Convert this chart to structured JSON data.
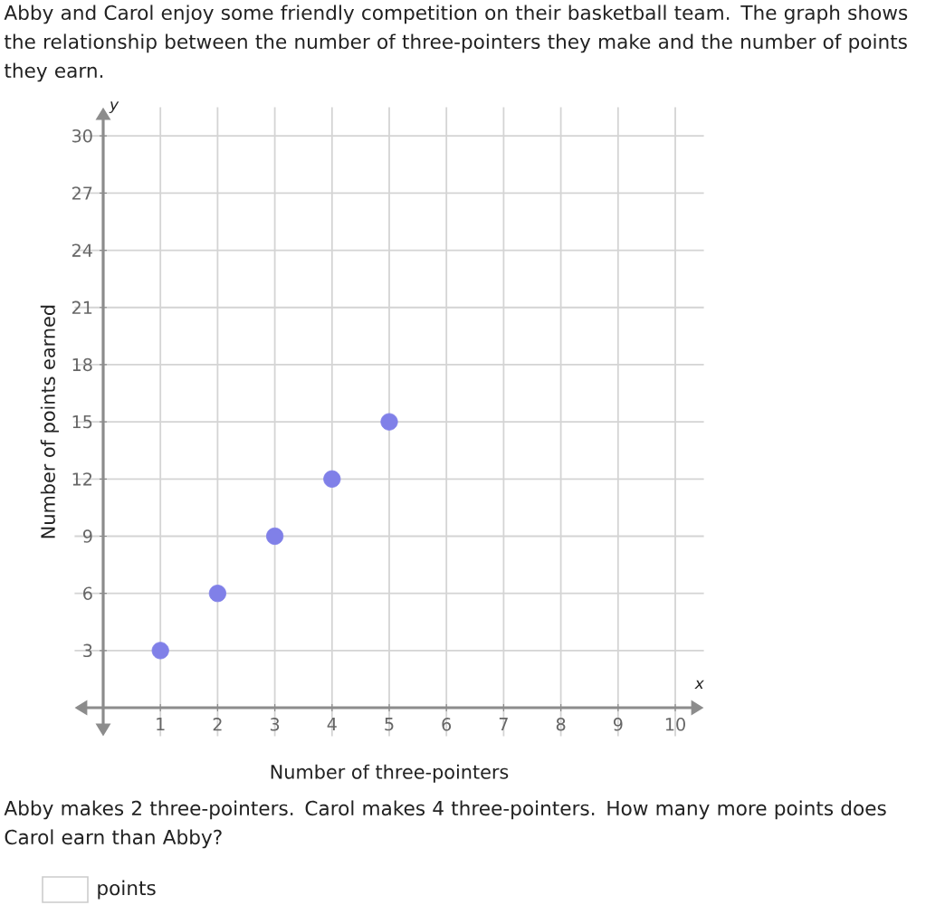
{
  "chart_data": {
    "type": "scatter",
    "title": "Abby and Carol enjoy some friendly competition on their basketball team. The graph shows the relationship between the number of three-pointers they make and the number of points they earn.",
    "xlabel": "Number of three-pointers",
    "ylabel": "Number of points earned",
    "x": [
      1,
      2,
      3,
      4,
      5
    ],
    "values": [
      3,
      6,
      9,
      12,
      15
    ],
    "color": "#8080e8",
    "marker": "circle",
    "xlim": [
      -0.5,
      10.5
    ],
    "ylim": [
      -1.5,
      31.5
    ],
    "xticks": [
      1,
      2,
      3,
      4,
      5,
      6,
      7,
      8,
      9,
      10
    ],
    "yticks": [
      3,
      6,
      9,
      12,
      15,
      18,
      21,
      24,
      27,
      30
    ],
    "grid": true,
    "annotations": [
      "y",
      "x",
      "Abby makes 2 three-pointers. Carol makes 4 three-pointers. How many more points does Carol earn than Abby?",
      "points"
    ]
  }
}
